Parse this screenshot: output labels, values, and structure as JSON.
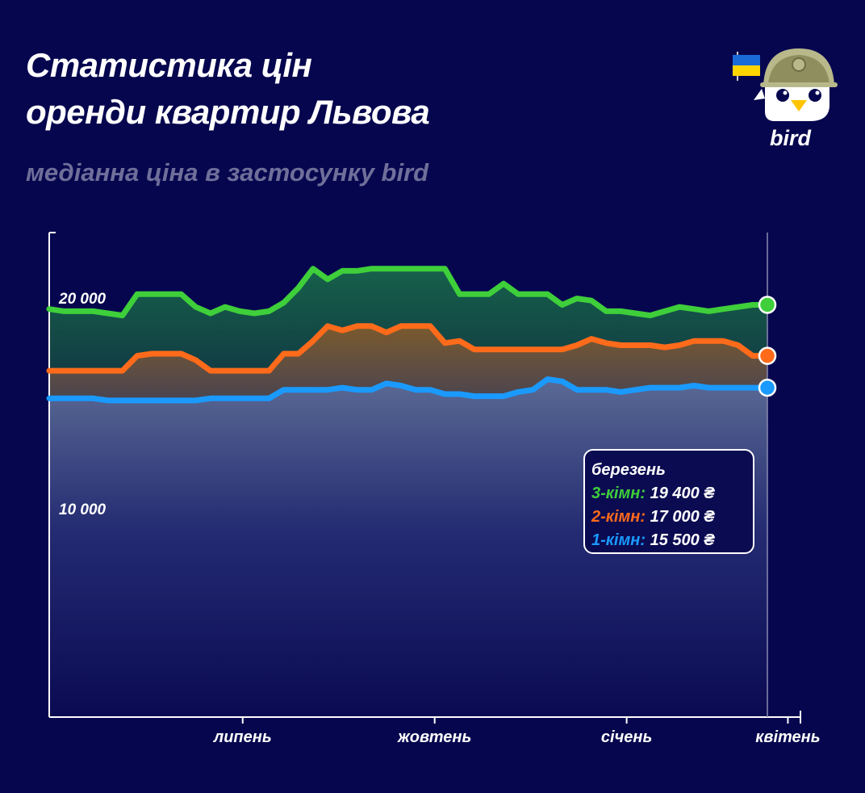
{
  "header": {
    "title_line1": "Статистика цін",
    "title_line2": "оренди квартир Львова",
    "subtitle": "медіанна ціна в застосунку bird"
  },
  "logo": {
    "text": "bird",
    "name": "bird-logo"
  },
  "colors": {
    "background": "#06064f",
    "three_room": "#3ecf3a",
    "two_room": "#ff6b1a",
    "one_room": "#1a9aff"
  },
  "chart_data": {
    "type": "area",
    "title": "Статистика цін оренди квартир Львова",
    "subtitle": "медіанна ціна в застосунку bird",
    "ylim": [
      0,
      22800
    ],
    "ytick_labels": [
      "20 000",
      "10 000"
    ],
    "yticks": [
      20000,
      10000
    ],
    "xtick_labels": [
      "липень",
      "жовтень",
      "січень",
      "квітень"
    ],
    "xtick_positions": [
      13.2,
      26.3,
      39.4,
      50.4
    ],
    "x": [
      0,
      1,
      2,
      3,
      4,
      5,
      6,
      7,
      8,
      9,
      10,
      11,
      12,
      13,
      14,
      15,
      16,
      17,
      18,
      19,
      20,
      21,
      22,
      23,
      24,
      25,
      26,
      27,
      28,
      29,
      30,
      31,
      32,
      33,
      34,
      35,
      36,
      37,
      38,
      39,
      40,
      41,
      42,
      43,
      44,
      45,
      46,
      47,
      48,
      49
    ],
    "series": [
      {
        "name": "3-кімн",
        "color": "#3ecf3a",
        "values": [
          19200,
          19100,
          19100,
          19100,
          19000,
          18900,
          19900,
          19900,
          19900,
          19900,
          19300,
          19000,
          19300,
          19100,
          19000,
          19100,
          19500,
          20200,
          21100,
          20600,
          21000,
          21000,
          21100,
          21100,
          21100,
          21100,
          21100,
          21100,
          19900,
          19900,
          19900,
          20400,
          19900,
          19900,
          19900,
          19400,
          19700,
          19600,
          19100,
          19100,
          19000,
          18900,
          19100,
          19300,
          19200,
          19100,
          19200,
          19300,
          19400,
          19400
        ]
      },
      {
        "name": "2-кімн",
        "color": "#ff6b1a",
        "values": [
          16300,
          16300,
          16300,
          16300,
          16300,
          16300,
          17000,
          17100,
          17100,
          17100,
          16800,
          16300,
          16300,
          16300,
          16300,
          16300,
          17100,
          17100,
          17700,
          18400,
          18200,
          18400,
          18400,
          18100,
          18400,
          18400,
          18400,
          17600,
          17700,
          17300,
          17300,
          17300,
          17300,
          17300,
          17300,
          17300,
          17500,
          17800,
          17600,
          17500,
          17500,
          17500,
          17400,
          17500,
          17700,
          17700,
          17700,
          17500,
          17000,
          17000
        ]
      },
      {
        "name": "1-кімн",
        "color": "#1a9aff",
        "values": [
          15000,
          15000,
          15000,
          15000,
          14900,
          14900,
          14900,
          14900,
          14900,
          14900,
          14900,
          15000,
          15000,
          15000,
          15000,
          15000,
          15400,
          15400,
          15400,
          15400,
          15500,
          15400,
          15400,
          15700,
          15600,
          15400,
          15400,
          15200,
          15200,
          15100,
          15100,
          15100,
          15300,
          15400,
          15900,
          15800,
          15400,
          15400,
          15400,
          15300,
          15400,
          15500,
          15500,
          15500,
          15600,
          15500,
          15500,
          15500,
          15500,
          15500
        ]
      }
    ],
    "legend": {
      "month": "березень",
      "rows": [
        {
          "label": "3-кімн:",
          "value": "19 400 ₴",
          "color": "#3ecf3a"
        },
        {
          "label": "2-кімн:",
          "value": "17 000 ₴",
          "color": "#ff6b1a"
        },
        {
          "label": "1-кімн:",
          "value": "15 500 ₴",
          "color": "#1a9aff"
        }
      ]
    }
  }
}
